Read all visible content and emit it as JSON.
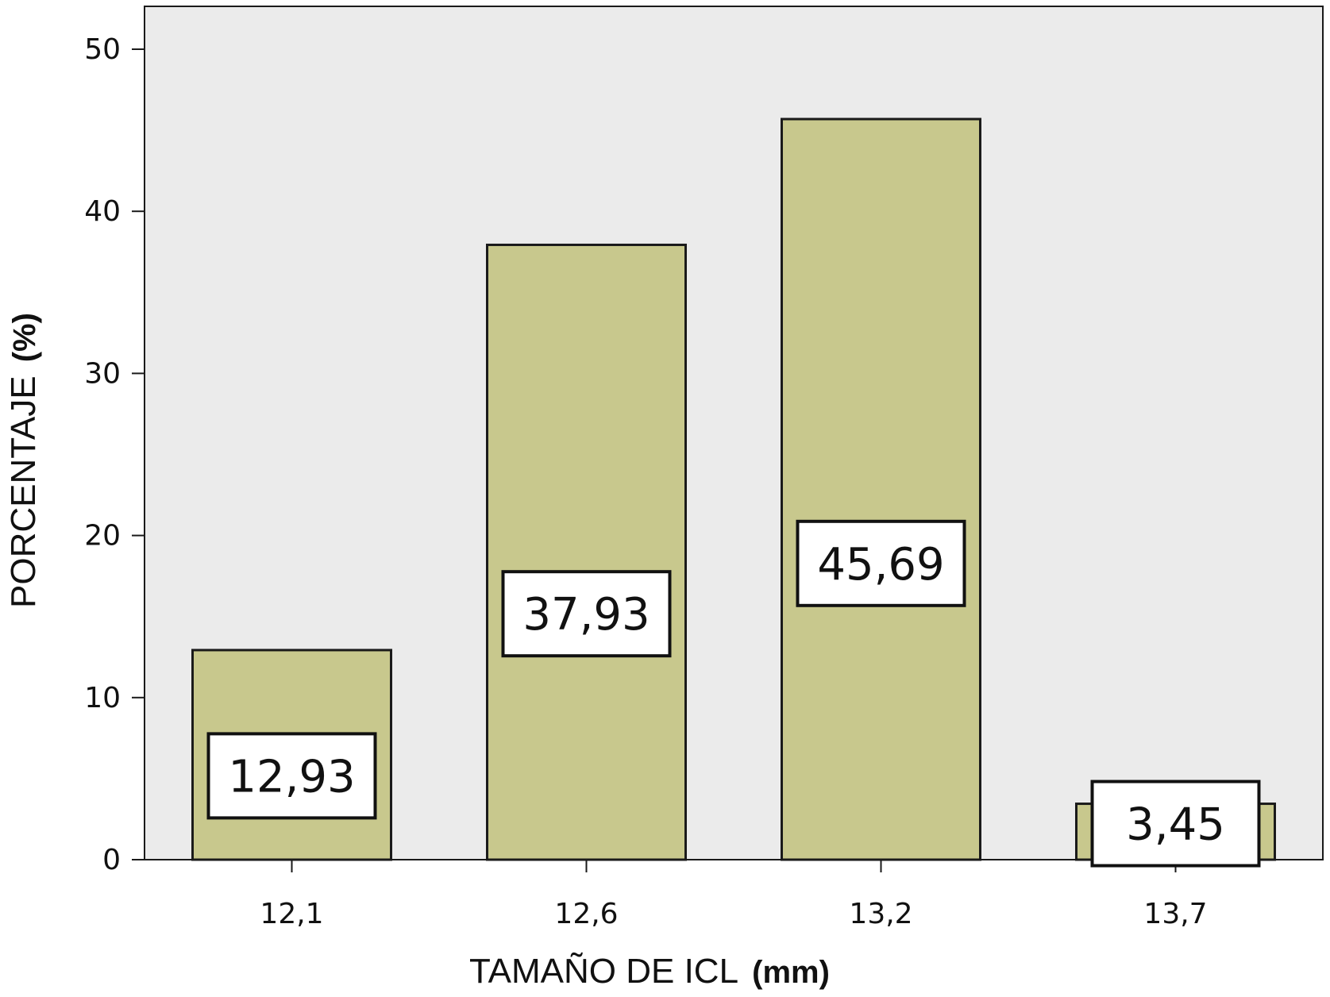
{
  "chart_data": {
    "type": "bar",
    "categories": [
      "12,1",
      "12,6",
      "13,2",
      "13,7"
    ],
    "values": [
      12.93,
      37.93,
      45.69,
      3.45
    ],
    "data_labels": [
      "12,93",
      "37,93",
      "45,69",
      "3,45"
    ],
    "xlabel_main": "TAMAÑO DE ICL",
    "xlabel_unit": "(mm)",
    "ylabel_main": "PORCENTAJE",
    "ylabel_unit": "(%)",
    "y_ticks": [
      0,
      10,
      20,
      30,
      40,
      50
    ],
    "ylim": [
      0,
      50
    ],
    "grid": false,
    "colors": {
      "plot_background": "#ebebeb",
      "bar_fill": "#c8c88d",
      "bar_stroke": "#1a1a1a",
      "label_box_fill": "#ffffff"
    }
  }
}
